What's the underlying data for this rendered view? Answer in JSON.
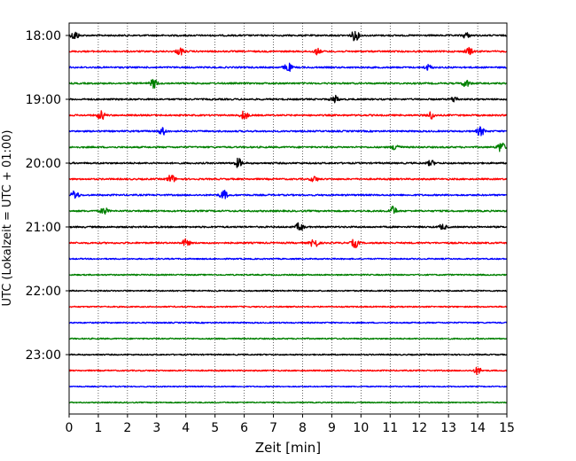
{
  "chart_data": {
    "type": "line",
    "subtype": "helicorder",
    "xlabel": "Zeit  [min]",
    "ylabel": "UTC (Lokalzeit = UTC + 01:00)",
    "xlim": [
      0,
      15
    ],
    "x_ticks": [
      "0",
      "1",
      "2",
      "3",
      "4",
      "5",
      "6",
      "7",
      "8",
      "9",
      "10",
      "11",
      "12",
      "13",
      "14",
      "15"
    ],
    "y_ticks": [
      "18:00",
      "19:00",
      "20:00",
      "21:00",
      "22:00",
      "23:00"
    ],
    "grid": "vertical-dotted",
    "trace_interval_min": 15,
    "color_cycle": [
      "#000000",
      "#ff0000",
      "#0000ff",
      "#008000"
    ],
    "traces": [
      {
        "start": "18:00",
        "color": "#000000",
        "noise": 0.9,
        "events": [
          {
            "t": 0.2,
            "a": 5
          },
          {
            "t": 9.8,
            "a": 6
          },
          {
            "t": 13.6,
            "a": 3
          }
        ]
      },
      {
        "start": "18:15",
        "color": "#ff0000",
        "noise": 0.9,
        "events": [
          {
            "t": 3.8,
            "a": 4
          },
          {
            "t": 8.5,
            "a": 3
          },
          {
            "t": 13.7,
            "a": 4
          }
        ]
      },
      {
        "start": "18:30",
        "color": "#0000ff",
        "noise": 0.9,
        "events": [
          {
            "t": 7.5,
            "a": 5
          },
          {
            "t": 12.3,
            "a": 3
          }
        ]
      },
      {
        "start": "18:45",
        "color": "#008000",
        "noise": 0.9,
        "events": [
          {
            "t": 2.9,
            "a": 5
          },
          {
            "t": 13.6,
            "a": 4
          }
        ]
      },
      {
        "start": "19:00",
        "color": "#000000",
        "noise": 0.9,
        "events": [
          {
            "t": 9.1,
            "a": 4
          },
          {
            "t": 13.2,
            "a": 3
          }
        ]
      },
      {
        "start": "19:15",
        "color": "#ff0000",
        "noise": 0.9,
        "events": [
          {
            "t": 1.1,
            "a": 5
          },
          {
            "t": 6.0,
            "a": 5
          },
          {
            "t": 12.4,
            "a": 4
          }
        ]
      },
      {
        "start": "19:30",
        "color": "#0000ff",
        "noise": 0.9,
        "events": [
          {
            "t": 3.2,
            "a": 4
          },
          {
            "t": 14.1,
            "a": 5
          }
        ]
      },
      {
        "start": "19:45",
        "color": "#008000",
        "noise": 0.9,
        "events": [
          {
            "t": 11.2,
            "a": 4
          },
          {
            "t": 14.8,
            "a": 6
          }
        ]
      },
      {
        "start": "20:00",
        "color": "#000000",
        "noise": 0.9,
        "events": [
          {
            "t": 5.8,
            "a": 5
          },
          {
            "t": 12.4,
            "a": 3
          }
        ]
      },
      {
        "start": "20:15",
        "color": "#ff0000",
        "noise": 0.9,
        "events": [
          {
            "t": 3.5,
            "a": 5
          },
          {
            "t": 8.4,
            "a": 3
          }
        ]
      },
      {
        "start": "20:30",
        "color": "#0000ff",
        "noise": 0.9,
        "events": [
          {
            "t": 0.2,
            "a": 5
          },
          {
            "t": 5.3,
            "a": 5
          }
        ]
      },
      {
        "start": "20:45",
        "color": "#008000",
        "noise": 0.9,
        "events": [
          {
            "t": 1.2,
            "a": 4
          },
          {
            "t": 11.1,
            "a": 5
          }
        ]
      },
      {
        "start": "21:00",
        "color": "#000000",
        "noise": 0.9,
        "events": [
          {
            "t": 7.9,
            "a": 5
          },
          {
            "t": 12.8,
            "a": 3
          }
        ]
      },
      {
        "start": "21:15",
        "color": "#ff0000",
        "noise": 0.9,
        "events": [
          {
            "t": 4.0,
            "a": 4
          },
          {
            "t": 8.4,
            "a": 6
          },
          {
            "t": 9.8,
            "a": 5
          }
        ]
      },
      {
        "start": "21:30",
        "color": "#0000ff",
        "noise": 0.7,
        "events": []
      },
      {
        "start": "21:45",
        "color": "#008000",
        "noise": 0.7,
        "events": []
      },
      {
        "start": "22:00",
        "color": "#000000",
        "noise": 0.7,
        "events": []
      },
      {
        "start": "22:15",
        "color": "#ff0000",
        "noise": 0.7,
        "events": []
      },
      {
        "start": "22:30",
        "color": "#0000ff",
        "noise": 0.7,
        "events": []
      },
      {
        "start": "22:45",
        "color": "#008000",
        "noise": 0.7,
        "events": []
      },
      {
        "start": "23:00",
        "color": "#000000",
        "noise": 0.7,
        "events": []
      },
      {
        "start": "23:15",
        "color": "#ff0000",
        "noise": 0.7,
        "events": [
          {
            "t": 14.0,
            "a": 4
          }
        ]
      },
      {
        "start": "23:30",
        "color": "#0000ff",
        "noise": 0.6,
        "events": []
      },
      {
        "start": "23:45",
        "color": "#008000",
        "noise": 0.6,
        "events": []
      }
    ]
  }
}
